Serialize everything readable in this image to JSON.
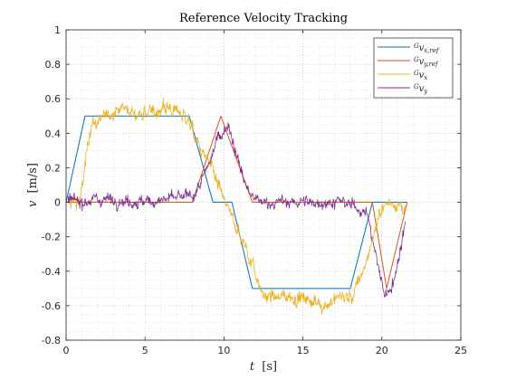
{
  "chart_data": {
    "type": "line",
    "title": "Reference Velocity Tracking",
    "xlabel": "t",
    "xlabel_unit": "[s]",
    "ylabel": "v",
    "ylabel_unit": "[m/s]",
    "xlim": [
      0,
      25
    ],
    "ylim": [
      -0.8,
      1
    ],
    "xticks": [
      0,
      5,
      10,
      15,
      20,
      25
    ],
    "yticks": [
      -0.8,
      -0.6,
      -0.4,
      -0.2,
      0,
      0.2,
      0.4,
      0.6,
      0.8,
      1
    ],
    "grid": "major and minor dotted",
    "legend_position": "top-right",
    "series": [
      {
        "name": "Gv_x,ref",
        "legend": {
          "pre": "G",
          "main": "v",
          "sub": "x,ref"
        },
        "color": "#0072BD",
        "noisy": false,
        "x": [
          0,
          1.2,
          7.8,
          9.3,
          10.5,
          11.8,
          18.0,
          19.4,
          21.6
        ],
        "y": [
          0,
          0.5,
          0.5,
          0.0,
          0.0,
          -0.5,
          -0.5,
          0.0,
          0.0
        ]
      },
      {
        "name": "Gv_y,ref",
        "legend": {
          "pre": "G",
          "main": "v",
          "sub": "y,ref"
        },
        "color": "#D95319",
        "noisy": false,
        "x": [
          0,
          8.0,
          9.8,
          11.8,
          19.4,
          20.3,
          21.6
        ],
        "y": [
          0,
          0.0,
          0.5,
          0.0,
          0.0,
          -0.5,
          0.0
        ]
      },
      {
        "name": "Gv_x",
        "legend": {
          "pre": "G",
          "main": "v",
          "sub": "x"
        },
        "color": "#EDB120",
        "noisy": true,
        "noise": 0.03,
        "x": [
          0,
          0.9,
          1.5,
          3.3,
          5.0,
          6.5,
          7.6,
          8.5,
          9.0,
          9.6,
          10.3,
          11.0,
          11.8,
          12.5,
          15.0,
          16.2,
          17.5,
          18.2,
          19.0,
          20.0,
          20.5,
          21.5
        ],
        "y": [
          0,
          0.0,
          0.43,
          0.55,
          0.5,
          0.55,
          0.5,
          0.3,
          0.25,
          0.1,
          -0.05,
          -0.2,
          -0.35,
          -0.55,
          -0.55,
          -0.6,
          -0.55,
          -0.55,
          -0.35,
          -0.02,
          0.0,
          -0.02
        ]
      },
      {
        "name": "Gv_y",
        "legend": {
          "pre": "G",
          "main": "v",
          "sub": "y"
        },
        "color": "#7E2F8E",
        "noisy": true,
        "noise": 0.025,
        "x": [
          0,
          2.5,
          5.0,
          7.5,
          8.2,
          9.0,
          9.6,
          10.3,
          11.0,
          11.6,
          12.2,
          15.0,
          17.5,
          19.0,
          19.6,
          20.2,
          20.8,
          21.5
        ],
        "y": [
          0,
          0.02,
          0.0,
          0.03,
          0.05,
          0.2,
          0.38,
          0.45,
          0.2,
          0.05,
          0.0,
          0.0,
          0.0,
          -0.05,
          -0.3,
          -0.55,
          -0.45,
          -0.1
        ]
      }
    ]
  }
}
